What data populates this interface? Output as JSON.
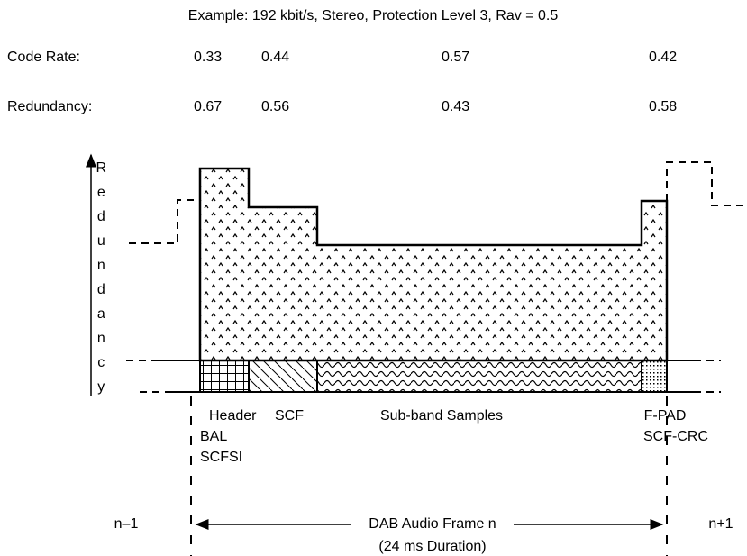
{
  "title": "Example: 192 kbit/s, Stereo, Protection Level 3, Rav = 0.5",
  "code_rate": {
    "label": "Code Rate:",
    "values": [
      "0.33",
      "0.44",
      "0.57",
      "0.42"
    ]
  },
  "redundancy": {
    "label": "Redundancy:",
    "values": [
      "0.67",
      "0.56",
      "0.43",
      "0.58"
    ]
  },
  "axis_label": "Redundancy",
  "segments": [
    "Header",
    "BAL",
    "SCFSI",
    "SCF",
    "Sub-band Samples",
    "F-PAD",
    "SCF-CRC"
  ],
  "previous_frame": "n–1",
  "frame_label": "DAB Audio Frame n",
  "next_frame": "n+1",
  "duration": "(24 ms Duration)"
}
